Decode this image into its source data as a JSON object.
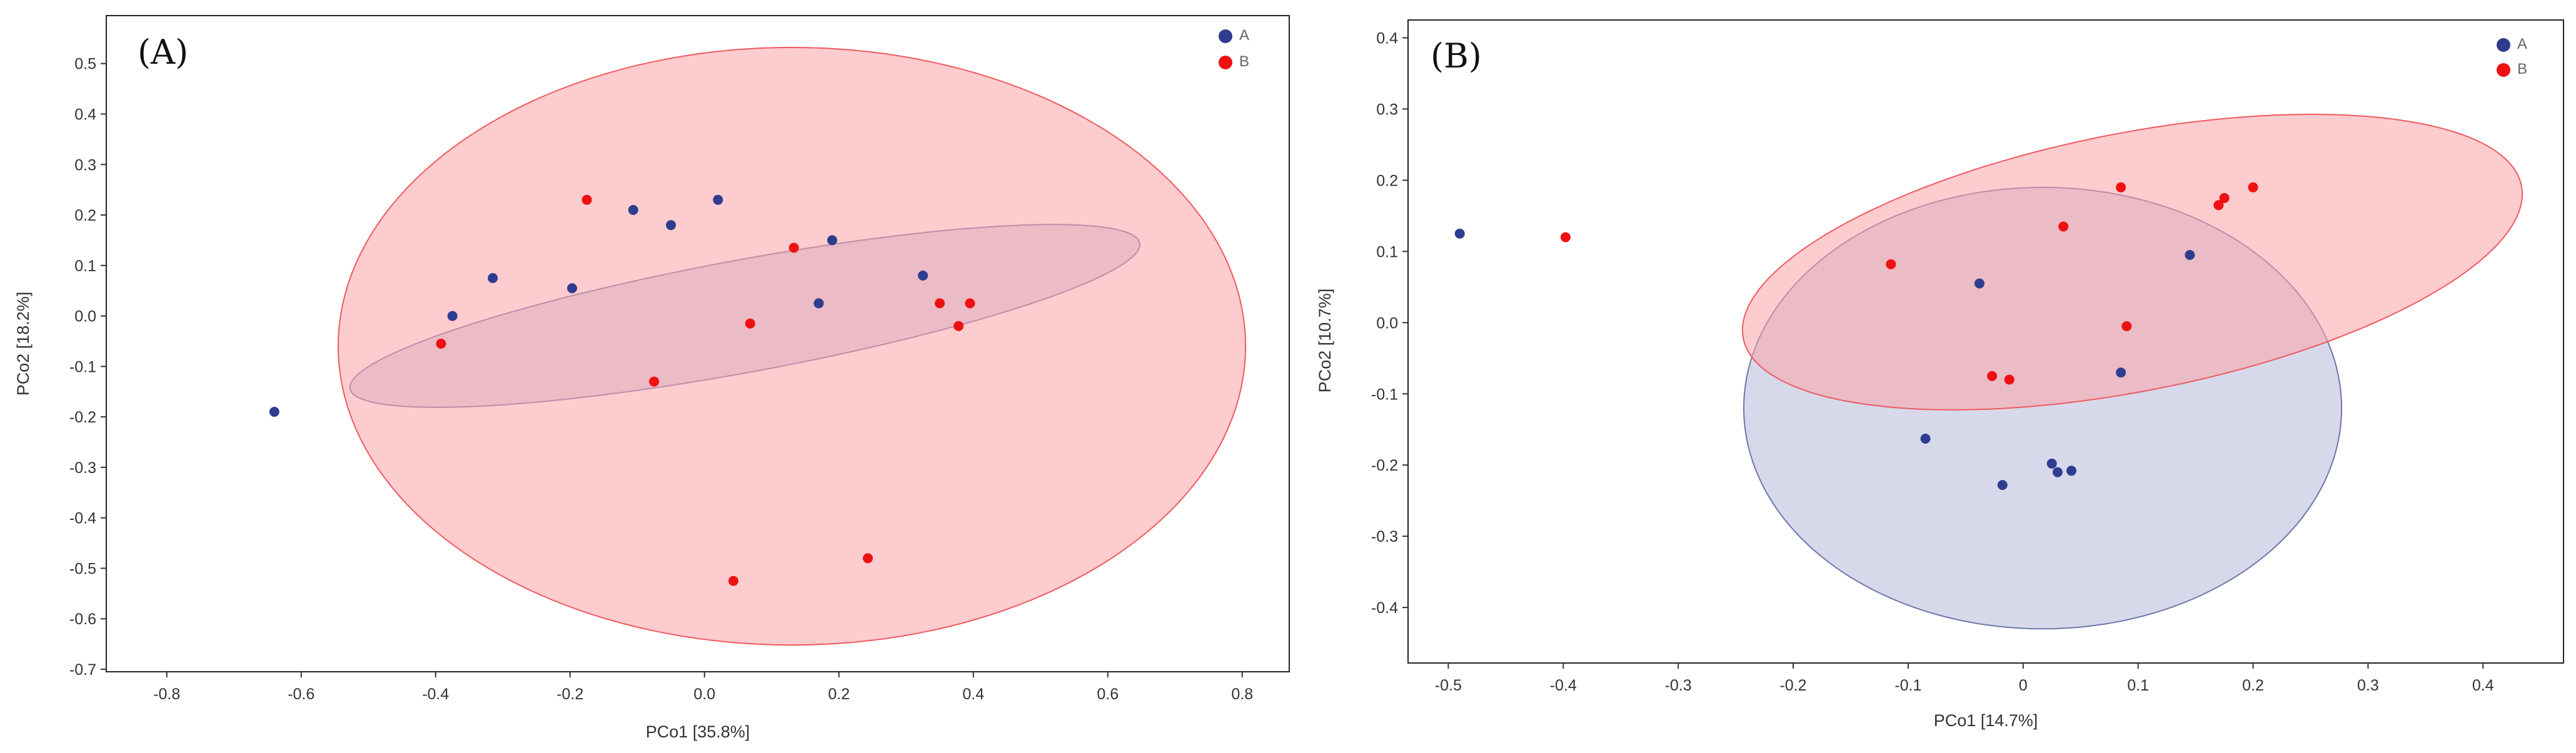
{
  "colors": {
    "group_a": "#2e3d8f",
    "group_b": "#ee1111",
    "ellipse_a_fill": "#c9cce3",
    "ellipse_a_stroke": "#6e76ab",
    "ellipse_b_fill": "#fca3a8",
    "ellipse_b_stroke": "#ee5a5f"
  },
  "chart_data": [
    {
      "type": "scatter",
      "panel_label": "(A)",
      "xlabel": "PCo1 [35.8%]",
      "ylabel": "PCo2 [18.2%]",
      "xlim": [
        -0.89,
        0.87
      ],
      "ylim": [
        -0.705,
        0.595
      ],
      "xticks": [
        -0.8,
        -0.6,
        -0.4,
        -0.2,
        0.0,
        0.2,
        0.4,
        0.6,
        0.8
      ],
      "yticks": [
        -0.7,
        -0.6,
        -0.5,
        -0.4,
        -0.3,
        -0.2,
        -0.1,
        0.0,
        0.1,
        0.2,
        0.3,
        0.4,
        0.5
      ],
      "xtick_labels": [
        "-0.8",
        "-0.6",
        "-0.4",
        "-0.2",
        "0.0",
        "0.2",
        "0.4",
        "0.6",
        "0.8"
      ],
      "ytick_labels": [
        "-0.7",
        "-0.6",
        "-0.5",
        "-0.4",
        "-0.3",
        "-0.2",
        "-0.1",
        "0.0",
        "0.1",
        "0.2",
        "0.3",
        "0.4",
        "0.5"
      ],
      "legend": [
        {
          "name": "A",
          "color": "#2e3d8f"
        },
        {
          "name": "B",
          "color": "#ee1111"
        }
      ],
      "legend_position": "top-right",
      "series": [
        {
          "name": "A",
          "points": [
            [
              -0.64,
              -0.19
            ],
            [
              -0.375,
              0.0
            ],
            [
              -0.315,
              0.075
            ],
            [
              -0.197,
              0.055
            ],
            [
              -0.106,
              0.21
            ],
            [
              -0.05,
              0.18
            ],
            [
              0.02,
              0.23
            ],
            [
              0.19,
              0.15
            ],
            [
              0.17,
              0.025
            ],
            [
              0.325,
              0.08
            ]
          ]
        },
        {
          "name": "B",
          "points": [
            [
              -0.392,
              -0.055
            ],
            [
              -0.175,
              0.23
            ],
            [
              -0.075,
              -0.13
            ],
            [
              0.068,
              -0.015
            ],
            [
              0.133,
              0.135
            ],
            [
              0.35,
              0.025
            ],
            [
              0.378,
              -0.02
            ],
            [
              0.395,
              0.025
            ],
            [
              0.043,
              -0.525
            ],
            [
              0.243,
              -0.48
            ]
          ]
        }
      ],
      "ellipses": [
        {
          "group": "A",
          "center": [
            0.06,
            0.0
          ],
          "semi_axes": [
            0.605,
            0.11
          ],
          "angle_deg": 14.0
        },
        {
          "group": "B",
          "center": [
            0.13,
            -0.06
          ],
          "semi_axes": [
            0.675,
            0.592
          ],
          "angle_deg": 0.0
        }
      ]
    },
    {
      "type": "scatter",
      "panel_label": "(B)",
      "xlabel": "PCo1 [14.7%]",
      "ylabel": "PCo2 [10.7%]",
      "xlim": [
        -0.535,
        0.47
      ],
      "ylim": [
        -0.478,
        0.425
      ],
      "xticks": [
        -0.5,
        -0.4,
        -0.3,
        -0.2,
        -0.1,
        0.0,
        0.1,
        0.2,
        0.3,
        0.4
      ],
      "yticks": [
        -0.4,
        -0.3,
        -0.2,
        -0.1,
        0.0,
        0.1,
        0.2,
        0.3,
        0.4
      ],
      "xtick_labels": [
        "-0.5",
        "-0.4",
        "-0.3",
        "-0.2",
        "-0.1",
        "0",
        "0.1",
        "0.2",
        "0.3",
        "0.4"
      ],
      "ytick_labels": [
        "-0.4",
        "-0.3",
        "-0.2",
        "-0.1",
        "0.0",
        "0.1",
        "0.2",
        "0.3",
        "0.4"
      ],
      "legend": [
        {
          "name": "A",
          "color": "#2e3d8f"
        },
        {
          "name": "B",
          "color": "#ee1111"
        }
      ],
      "legend_position": "top-right",
      "series": [
        {
          "name": "A",
          "points": [
            [
              -0.49,
              0.125
            ],
            [
              -0.038,
              0.055
            ],
            [
              -0.085,
              -0.163
            ],
            [
              -0.018,
              -0.228
            ],
            [
              0.025,
              -0.198
            ],
            [
              0.03,
              -0.21
            ],
            [
              0.042,
              -0.208
            ],
            [
              0.085,
              -0.07
            ],
            [
              0.145,
              0.095
            ]
          ]
        },
        {
          "name": "B",
          "points": [
            [
              -0.398,
              0.12
            ],
            [
              -0.115,
              0.082
            ],
            [
              -0.027,
              -0.075
            ],
            [
              -0.012,
              -0.08
            ],
            [
              0.035,
              0.135
            ],
            [
              0.085,
              0.19
            ],
            [
              0.09,
              -0.005
            ],
            [
              0.17,
              0.165
            ],
            [
              0.175,
              0.175
            ],
            [
              0.2,
              0.19
            ]
          ]
        }
      ],
      "ellipses": [
        {
          "group": "A",
          "center": [
            0.017,
            -0.12
          ],
          "semi_axes": [
            0.26,
            0.31
          ],
          "angle_deg": 0.0
        },
        {
          "group": "B",
          "center": [
            0.095,
            0.085
          ],
          "semi_axes": [
            0.357,
            0.175
          ],
          "angle_deg": 21.0
        }
      ]
    }
  ]
}
